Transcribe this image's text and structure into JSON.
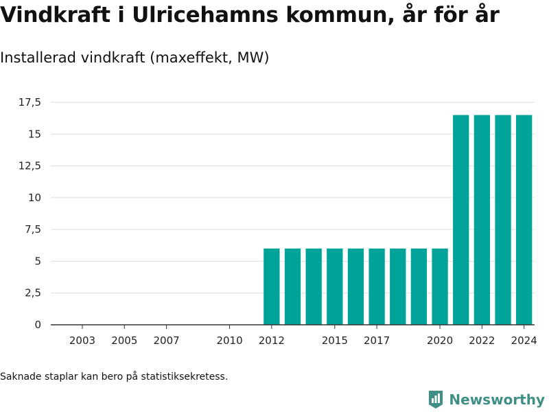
{
  "title": "Vindkraft i Ulricehamns kommun, år för år",
  "subtitle": "Installerad vindkraft (maxeffekt, MW)",
  "footnote": "Saknade staplar kan bero på statistiksekretess.",
  "brand": "Newsworthy",
  "colors": {
    "bar": "#00a39a",
    "grid": "#dddddd",
    "axis": "#333333",
    "brand": "#3f8f87"
  },
  "chart_data": {
    "type": "bar",
    "title": "Vindkraft i Ulricehamns kommun, år för år",
    "subtitle": "Installerad vindkraft (maxeffekt, MW)",
    "xlabel": "",
    "ylabel": "",
    "categories": [
      2002,
      2003,
      2004,
      2005,
      2006,
      2007,
      2008,
      2009,
      2010,
      2011,
      2012,
      2013,
      2014,
      2015,
      2016,
      2017,
      2018,
      2019,
      2020,
      2021,
      2022,
      2023,
      2024
    ],
    "values": [
      0,
      0,
      0,
      0,
      0,
      0,
      0,
      0,
      0,
      0,
      6,
      6,
      6,
      6,
      6,
      6,
      6,
      6,
      6,
      16.5,
      16.5,
      16.5,
      16.5
    ],
    "x_tick_labels": [
      "2003",
      "2005",
      "2007",
      "2010",
      "2012",
      "2015",
      "2017",
      "2020",
      "2022",
      "2024"
    ],
    "y_ticks": [
      0,
      2.5,
      5,
      7.5,
      10,
      12.5,
      15,
      17.5
    ],
    "y_tick_labels": [
      "0",
      "2,5",
      "5",
      "7,5",
      "10",
      "12,5",
      "15",
      "17,5"
    ],
    "ylim": [
      0,
      17.5
    ],
    "grid": true,
    "legend": "none"
  }
}
